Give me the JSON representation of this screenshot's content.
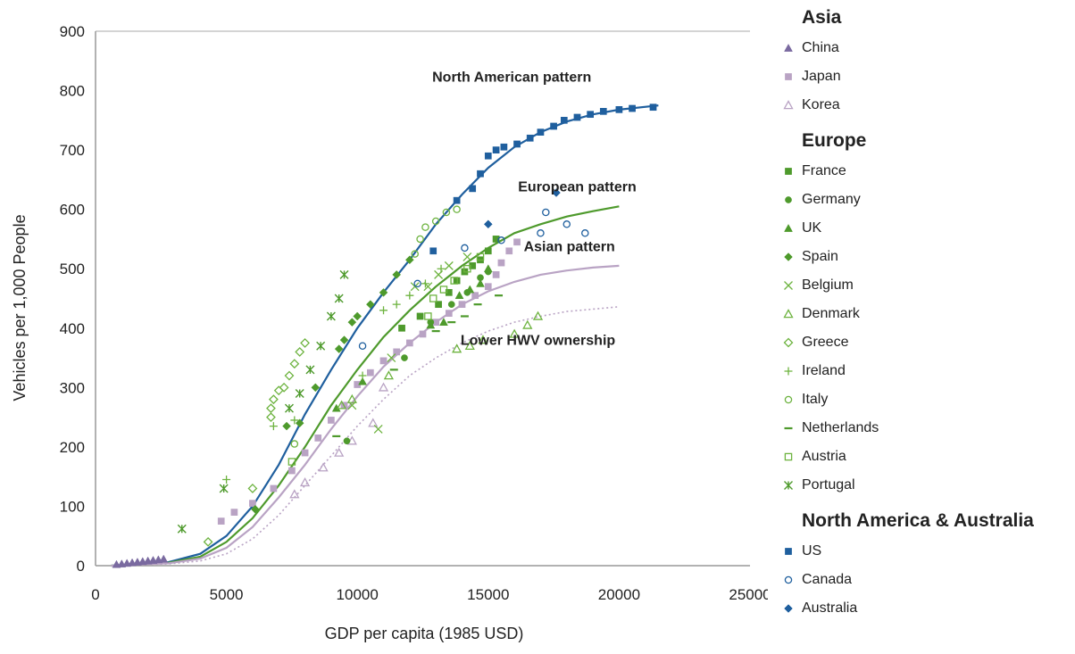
{
  "chart_data": {
    "type": "scatter",
    "xlabel": "GDP per capita (1985 USD)",
    "ylabel": "Vehicles per 1,000 People",
    "xlim": [
      0,
      25000
    ],
    "ylim": [
      0,
      900
    ],
    "x_ticks": [
      "0",
      "5000",
      "10000",
      "15000",
      "20000",
      "25000"
    ],
    "y_ticks": [
      "0",
      "100",
      "200",
      "300",
      "400",
      "500",
      "600",
      "700",
      "800",
      "900"
    ],
    "grid": "horizontal top line only",
    "legend_position": "right",
    "annotations": [
      {
        "text": "North American pattern",
        "x": 15900,
        "y": 815
      },
      {
        "text": "European  pattern",
        "x": 18400,
        "y": 630
      },
      {
        "text": "Asian pattern",
        "x": 18100,
        "y": 530
      },
      {
        "text": "Lower HWV ownership",
        "x": 16900,
        "y": 372
      }
    ],
    "legend_groups": [
      {
        "title": "Asia",
        "series": [
          "China",
          "Japan",
          "Korea"
        ]
      },
      {
        "title": "Europe",
        "series": [
          "France",
          "Germany",
          "UK",
          "Spain",
          "Belgium",
          "Denmark",
          "Greece",
          "Ireland",
          "Italy",
          "Netherlands",
          "Austria",
          "Portugal"
        ]
      },
      {
        "title": "North America & Australia",
        "series": [
          "US",
          "Canada",
          "Australia"
        ]
      }
    ],
    "series": [
      {
        "name": "China",
        "marker": "triangle",
        "color": "#7a6aa0",
        "points": [
          [
            800,
            2
          ],
          [
            1000,
            3
          ],
          [
            1200,
            4
          ],
          [
            1400,
            5
          ],
          [
            1600,
            6
          ],
          [
            1800,
            7
          ],
          [
            2000,
            8
          ],
          [
            2200,
            9
          ],
          [
            2400,
            10
          ],
          [
            2600,
            11
          ]
        ]
      },
      {
        "name": "Japan",
        "marker": "square",
        "color": "#b9a3c4",
        "points": [
          [
            4800,
            75
          ],
          [
            5300,
            90
          ],
          [
            6000,
            105
          ],
          [
            6800,
            130
          ],
          [
            7500,
            160
          ],
          [
            8000,
            190
          ],
          [
            8500,
            215
          ],
          [
            9000,
            245
          ],
          [
            9500,
            270
          ],
          [
            10000,
            305
          ],
          [
            10500,
            325
          ],
          [
            11000,
            345
          ],
          [
            11500,
            360
          ],
          [
            12000,
            375
          ],
          [
            12500,
            390
          ],
          [
            13000,
            410
          ],
          [
            13500,
            425
          ],
          [
            14000,
            440
          ],
          [
            14500,
            455
          ],
          [
            15000,
            470
          ],
          [
            15300,
            490
          ],
          [
            15500,
            510
          ],
          [
            15800,
            530
          ],
          [
            16100,
            545
          ]
        ]
      },
      {
        "name": "Korea",
        "marker": "triangle-open",
        "color": "#b9a3c4",
        "points": [
          [
            7600,
            120
          ],
          [
            8000,
            140
          ],
          [
            8700,
            165
          ],
          [
            9300,
            190
          ],
          [
            9800,
            210
          ],
          [
            10600,
            240
          ],
          [
            11000,
            300
          ]
        ]
      },
      {
        "name": "France",
        "marker": "square",
        "color": "#4e9a2c",
        "points": [
          [
            11700,
            400
          ],
          [
            12400,
            420
          ],
          [
            13100,
            440
          ],
          [
            13500,
            460
          ],
          [
            13800,
            480
          ],
          [
            14100,
            495
          ],
          [
            14400,
            505
          ],
          [
            14700,
            515
          ],
          [
            15000,
            530
          ],
          [
            15300,
            550
          ]
        ]
      },
      {
        "name": "Germany",
        "marker": "circle",
        "color": "#4e9a2c",
        "points": [
          [
            9600,
            210
          ],
          [
            11800,
            350
          ],
          [
            12800,
            410
          ],
          [
            13600,
            440
          ],
          [
            14200,
            460
          ],
          [
            14700,
            485
          ],
          [
            15000,
            495
          ]
        ]
      },
      {
        "name": "UK",
        "marker": "triangle",
        "color": "#4e9a2c",
        "points": [
          [
            9200,
            265
          ],
          [
            10200,
            310
          ],
          [
            12800,
            405
          ],
          [
            13300,
            410
          ],
          [
            13900,
            455
          ],
          [
            14300,
            465
          ],
          [
            14700,
            475
          ],
          [
            15000,
            500
          ]
        ]
      },
      {
        "name": "Spain",
        "marker": "diamond",
        "color": "#4e9a2c",
        "points": [
          [
            6100,
            95
          ],
          [
            7300,
            235
          ],
          [
            7800,
            240
          ],
          [
            8400,
            300
          ],
          [
            9300,
            365
          ],
          [
            9500,
            380
          ],
          [
            9800,
            410
          ],
          [
            10000,
            420
          ],
          [
            10500,
            440
          ],
          [
            11000,
            460
          ],
          [
            11500,
            490
          ],
          [
            12000,
            515
          ]
        ]
      },
      {
        "name": "Belgium",
        "marker": "x",
        "color": "#6db33f",
        "points": [
          [
            9800,
            270
          ],
          [
            10800,
            230
          ],
          [
            11300,
            350
          ],
          [
            12200,
            470
          ],
          [
            12700,
            470
          ],
          [
            13100,
            490
          ],
          [
            13500,
            505
          ],
          [
            14200,
            520
          ]
        ]
      },
      {
        "name": "Denmark",
        "marker": "triangle-open",
        "color": "#6db33f",
        "points": [
          [
            9400,
            270
          ],
          [
            9800,
            280
          ],
          [
            11200,
            320
          ],
          [
            13800,
            365
          ],
          [
            14300,
            370
          ],
          [
            14800,
            380
          ],
          [
            16000,
            390
          ],
          [
            16500,
            405
          ],
          [
            16900,
            420
          ]
        ]
      },
      {
        "name": "Greece",
        "marker": "diamond-open",
        "color": "#6db33f",
        "points": [
          [
            4300,
            40
          ],
          [
            6000,
            130
          ],
          [
            6700,
            250
          ],
          [
            6700,
            265
          ],
          [
            6800,
            280
          ],
          [
            7000,
            295
          ],
          [
            7200,
            300
          ],
          [
            7400,
            320
          ],
          [
            7600,
            340
          ],
          [
            7800,
            360
          ],
          [
            8000,
            375
          ]
        ]
      },
      {
        "name": "Ireland",
        "marker": "plus",
        "color": "#6db33f",
        "points": [
          [
            5000,
            145
          ],
          [
            6800,
            235
          ],
          [
            7600,
            245
          ],
          [
            10200,
            320
          ],
          [
            11000,
            430
          ],
          [
            11500,
            440
          ],
          [
            12000,
            455
          ],
          [
            12600,
            475
          ],
          [
            13200,
            500
          ]
        ]
      },
      {
        "name": "Italy",
        "marker": "circle-open",
        "color": "#6db33f",
        "points": [
          [
            7600,
            205
          ],
          [
            12200,
            525
          ],
          [
            12400,
            550
          ],
          [
            12600,
            570
          ],
          [
            13000,
            580
          ],
          [
            13400,
            595
          ],
          [
            13800,
            600
          ]
        ]
      },
      {
        "name": "Netherlands",
        "marker": "dash",
        "color": "#4e9a2c",
        "points": [
          [
            9200,
            218
          ],
          [
            11400,
            330
          ],
          [
            13000,
            395
          ],
          [
            13600,
            410
          ],
          [
            14100,
            420
          ],
          [
            14600,
            440
          ],
          [
            15400,
            455
          ]
        ]
      },
      {
        "name": "Austria",
        "marker": "square-open",
        "color": "#6db33f",
        "points": [
          [
            7500,
            175
          ],
          [
            12700,
            420
          ],
          [
            12900,
            450
          ],
          [
            13300,
            465
          ],
          [
            13700,
            480
          ],
          [
            14200,
            500
          ],
          [
            14700,
            520
          ]
        ]
      },
      {
        "name": "Portugal",
        "marker": "asterisk",
        "color": "#4e9a2c",
        "points": [
          [
            3300,
            62
          ],
          [
            4900,
            130
          ],
          [
            7400,
            265
          ],
          [
            7800,
            290
          ],
          [
            8200,
            330
          ],
          [
            8600,
            370
          ],
          [
            9000,
            420
          ],
          [
            9300,
            450
          ],
          [
            9500,
            490
          ]
        ]
      },
      {
        "name": "US",
        "marker": "square",
        "color": "#1f5f9e",
        "points": [
          [
            12900,
            530
          ],
          [
            13800,
            615
          ],
          [
            14400,
            635
          ],
          [
            14700,
            660
          ],
          [
            15000,
            690
          ],
          [
            15300,
            700
          ],
          [
            15600,
            705
          ],
          [
            16100,
            710
          ],
          [
            16600,
            720
          ],
          [
            17000,
            730
          ],
          [
            17500,
            740
          ],
          [
            17900,
            750
          ],
          [
            18400,
            755
          ],
          [
            18900,
            760
          ],
          [
            19400,
            765
          ],
          [
            20000,
            768
          ],
          [
            20500,
            770
          ],
          [
            21300,
            772
          ]
        ]
      },
      {
        "name": "Canada",
        "marker": "circle-open",
        "color": "#1f5f9e",
        "points": [
          [
            10200,
            370
          ],
          [
            12300,
            475
          ],
          [
            14100,
            535
          ],
          [
            15500,
            548
          ],
          [
            17000,
            560
          ],
          [
            17200,
            595
          ],
          [
            18000,
            575
          ],
          [
            18700,
            560
          ]
        ]
      },
      {
        "name": "Australia",
        "marker": "diamond",
        "color": "#1f5f9e",
        "points": [
          [
            15000,
            575
          ],
          [
            17600,
            628
          ]
        ]
      }
    ],
    "trend_lines": [
      {
        "pattern": "North American pattern",
        "color": "#1f5f9e",
        "style": "solid",
        "points": [
          [
            600,
            0
          ],
          [
            2800,
            6
          ],
          [
            4000,
            20
          ],
          [
            5000,
            50
          ],
          [
            6000,
            100
          ],
          [
            7000,
            170
          ],
          [
            8000,
            255
          ],
          [
            9000,
            330
          ],
          [
            10000,
            400
          ],
          [
            11000,
            460
          ],
          [
            12000,
            515
          ],
          [
            13000,
            575
          ],
          [
            14000,
            625
          ],
          [
            15000,
            670
          ],
          [
            16000,
            705
          ],
          [
            17000,
            730
          ],
          [
            18000,
            748
          ],
          [
            19000,
            760
          ],
          [
            20000,
            768
          ],
          [
            21500,
            775
          ]
        ]
      },
      {
        "name_ref": "European  pattern",
        "color": "#4e9a2c",
        "style": "solid",
        "points": [
          [
            600,
            0
          ],
          [
            2800,
            5
          ],
          [
            4000,
            15
          ],
          [
            5000,
            40
          ],
          [
            6000,
            80
          ],
          [
            7000,
            135
          ],
          [
            8000,
            200
          ],
          [
            9000,
            270
          ],
          [
            10000,
            330
          ],
          [
            11000,
            385
          ],
          [
            12000,
            430
          ],
          [
            13000,
            470
          ],
          [
            14000,
            505
          ],
          [
            15000,
            535
          ],
          [
            16000,
            560
          ],
          [
            17000,
            575
          ],
          [
            18000,
            588
          ],
          [
            19000,
            597
          ],
          [
            20000,
            605
          ]
        ]
      },
      {
        "name_ref": "Asian pattern",
        "color": "#b9a3c4",
        "style": "solid",
        "points": [
          [
            600,
            0
          ],
          [
            2800,
            4
          ],
          [
            4000,
            12
          ],
          [
            5000,
            30
          ],
          [
            6000,
            65
          ],
          [
            7000,
            115
          ],
          [
            8000,
            170
          ],
          [
            9000,
            230
          ],
          [
            10000,
            285
          ],
          [
            11000,
            335
          ],
          [
            12000,
            375
          ],
          [
            13000,
            410
          ],
          [
            14000,
            440
          ],
          [
            15000,
            462
          ],
          [
            16000,
            478
          ],
          [
            17000,
            490
          ],
          [
            18000,
            497
          ],
          [
            19000,
            502
          ],
          [
            20000,
            505
          ]
        ]
      },
      {
        "name_ref": "Lower HWV ownership",
        "color": "#b9a3c4",
        "style": "dotted",
        "points": [
          [
            600,
            0
          ],
          [
            2800,
            3
          ],
          [
            4000,
            8
          ],
          [
            5000,
            20
          ],
          [
            6000,
            45
          ],
          [
            7000,
            85
          ],
          [
            8000,
            135
          ],
          [
            9000,
            185
          ],
          [
            10000,
            235
          ],
          [
            11000,
            280
          ],
          [
            12000,
            320
          ],
          [
            13000,
            350
          ],
          [
            14000,
            375
          ],
          [
            15000,
            395
          ],
          [
            16000,
            410
          ],
          [
            17000,
            420
          ],
          [
            18000,
            428
          ],
          [
            19000,
            432
          ],
          [
            20000,
            436
          ]
        ]
      }
    ]
  }
}
